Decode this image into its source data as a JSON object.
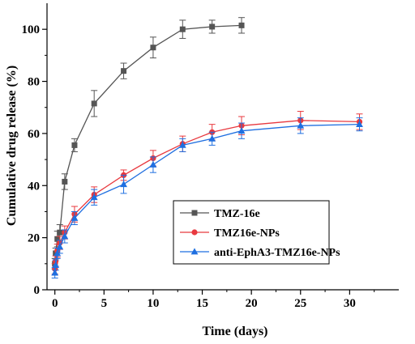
{
  "chart_data": {
    "type": "line",
    "title": "",
    "xlabel": "Time (days)",
    "ylabel": "Cumulative drug release (%)",
    "xlim": [
      -0.8,
      35
    ],
    "ylim": [
      0,
      110
    ],
    "xticks": [
      0,
      5,
      10,
      15,
      20,
      25,
      30
    ],
    "yticks": [
      0,
      20,
      40,
      60,
      80,
      100
    ],
    "grid": false,
    "legend_position": "lower-right",
    "series": [
      {
        "name": "TMZ-16e",
        "color": "#555555",
        "marker": "square",
        "x": [
          0,
          0.08,
          0.25,
          0.5,
          1,
          2,
          4,
          7,
          10,
          13,
          16,
          19
        ],
        "y": [
          10,
          14,
          19.5,
          22,
          41.5,
          55.5,
          71.5,
          84,
          93,
          100,
          101,
          101.5
        ],
        "err": [
          2,
          2,
          3,
          3,
          3,
          2.5,
          5,
          3,
          4,
          3.5,
          2.5,
          3
        ]
      },
      {
        "name": "TMZ16e-NPs",
        "color": "#e8393f",
        "marker": "circle",
        "x": [
          0,
          0.08,
          0.25,
          0.5,
          1,
          2,
          4,
          7,
          10,
          13,
          16,
          19,
          25,
          31
        ],
        "y": [
          8,
          11,
          15,
          18,
          22,
          29,
          36.5,
          44,
          50.5,
          56,
          60.5,
          63,
          65,
          64.5
        ],
        "err": [
          2,
          2,
          2.5,
          2.5,
          2.5,
          3,
          3,
          2,
          3,
          3,
          3,
          3.5,
          3.5,
          3
        ]
      },
      {
        "name": "anti-EphA3-TMZ16e-NPs",
        "color": "#1f6fe0",
        "marker": "triangle",
        "x": [
          0,
          0.08,
          0.25,
          0.5,
          1,
          2,
          4,
          7,
          10,
          13,
          16,
          19,
          25,
          31
        ],
        "y": [
          6.5,
          9.5,
          14,
          16.5,
          20.5,
          27.5,
          35.5,
          40.5,
          48,
          55.5,
          58,
          61,
          63,
          63.5
        ],
        "err": [
          2,
          2,
          2,
          2.5,
          2.5,
          2.5,
          3,
          3.5,
          3,
          2.5,
          2.5,
          3,
          3,
          2.5
        ]
      }
    ]
  }
}
